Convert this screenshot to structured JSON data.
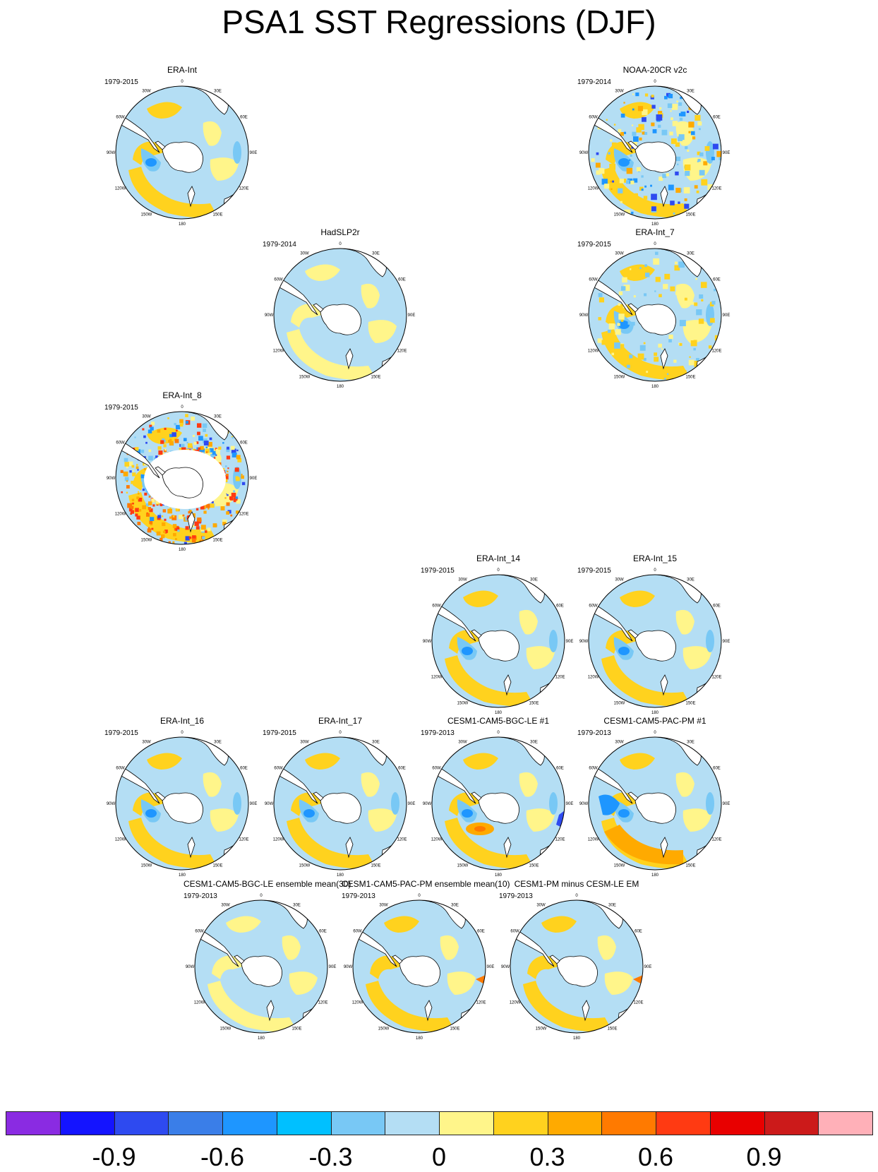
{
  "title": "PSA1 SST Regressions (DJF)",
  "map_labels": {
    "lon_ticks": [
      "0",
      "30E",
      "60E",
      "90E",
      "120E",
      "150E",
      "180",
      "150W",
      "120W",
      "90W",
      "60W",
      "30W"
    ]
  },
  "panels": [
    {
      "id": "era-int",
      "title": "ERA-Int",
      "years": "1979-2015",
      "pattern": "smooth"
    },
    {
      "id": "noaa-20cr",
      "title": "NOAA-20CR v2c",
      "years": "1979-2014",
      "pattern": "noisy"
    },
    {
      "id": "hadslp2r",
      "title": "HadSLP2r",
      "years": "1979-2014",
      "pattern": "weak"
    },
    {
      "id": "era-int-7",
      "title": "ERA-Int_7",
      "years": "1979-2015",
      "pattern": "semi"
    },
    {
      "id": "era-int-8",
      "title": "ERA-Int_8",
      "years": "1979-2015",
      "pattern": "very-noisy"
    },
    {
      "id": "era-int-14",
      "title": "ERA-Int_14",
      "years": "1979-2015",
      "pattern": "smooth"
    },
    {
      "id": "era-int-15",
      "title": "ERA-Int_15",
      "years": "1979-2015",
      "pattern": "smooth"
    },
    {
      "id": "era-int-16",
      "title": "ERA-Int_16",
      "years": "1979-2015",
      "pattern": "smooth"
    },
    {
      "id": "era-int-17",
      "title": "ERA-Int_17",
      "years": "1979-2015",
      "pattern": "smooth"
    },
    {
      "id": "cesm-bgc-le-1",
      "title": "CESM1-CAM5-BGC-LE #1",
      "years": "1979-2013",
      "pattern": "model-le"
    },
    {
      "id": "cesm-pac-pm-1",
      "title": "CESM1-CAM5-PAC-PM #1",
      "years": "1979-2013",
      "pattern": "model-pm"
    },
    {
      "id": "cesm-bgc-le-em",
      "title": "CESM1-CAM5-BGC-LE ensemble mean(30)",
      "years": "1979-2013",
      "pattern": "ensemble-weak"
    },
    {
      "id": "cesm-pac-pm-em",
      "title": "CESM1-CAM5-PAC-PM ensemble mean(10)",
      "years": "1979-2013",
      "pattern": "ensemble"
    },
    {
      "id": "cesm-pm-minus-le",
      "title": "CESM1-PM minus CESM-LE EM",
      "years": "1979-2013",
      "pattern": "ensemble"
    }
  ],
  "colorbar": {
    "colors": [
      "#8a2be2",
      "#1414ff",
      "#2e4af0",
      "#3a7ee8",
      "#1e96ff",
      "#00c0ff",
      "#78c8f5",
      "#b4def4",
      "#fff58a",
      "#ffd21e",
      "#ffaa00",
      "#ff7a00",
      "#ff3a12",
      "#e80000",
      "#cc1a1a",
      "#ffb0b8"
    ],
    "labels": [
      "-0.9",
      "-0.6",
      "-0.3",
      "0",
      "0.3",
      "0.6",
      "0.9"
    ]
  },
  "palette": {
    "neutral": "#b4def4",
    "pos1": "#fff58a",
    "pos2": "#ffd21e",
    "pos3": "#ffaa00",
    "pos4": "#ff7a00",
    "pos5": "#ff3a12",
    "neg1": "#78c8f5",
    "neg2": "#1e96ff",
    "neg3": "#2e4af0"
  }
}
